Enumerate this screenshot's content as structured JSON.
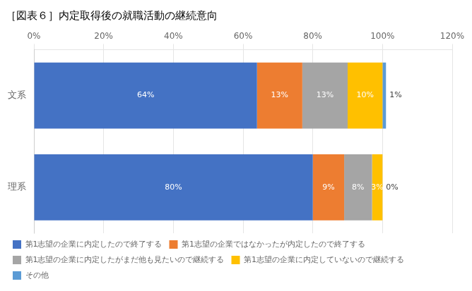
{
  "chart_data": {
    "type": "bar",
    "orientation": "horizontal",
    "stacked": true,
    "title": "［図表６］内定取得後の就職活動の継続意向",
    "categories": [
      "文系",
      "理系"
    ],
    "series": [
      {
        "name": "第1志望の企業に内定したので終了する",
        "color": "#4472C4",
        "values": [
          64,
          80
        ],
        "value_labels": [
          "64%",
          "80%"
        ]
      },
      {
        "name": "第1志望の企業ではなかったが内定したので終了する",
        "color": "#ED7D31",
        "values": [
          13,
          9
        ],
        "value_labels": [
          "13%",
          "9%"
        ]
      },
      {
        "name": "第1志望の企業に内定したがまだ他も見たいので継続する",
        "color": "#A5A5A5",
        "values": [
          13,
          8
        ],
        "value_labels": [
          "13%",
          "8%"
        ]
      },
      {
        "name": "第1志望の企業に内定していないので継続する",
        "color": "#FFC000",
        "values": [
          10,
          3
        ],
        "value_labels": [
          "10%",
          "3%"
        ]
      },
      {
        "name": "その他",
        "color": "#5B9BD5",
        "values": [
          1,
          0
        ],
        "value_labels": [
          "1%",
          "0%"
        ]
      }
    ],
    "xlim": [
      0,
      120
    ],
    "xticks": [
      {
        "value": 0,
        "label": "0%"
      },
      {
        "value": 20,
        "label": "20%"
      },
      {
        "value": 40,
        "label": "40%"
      },
      {
        "value": 60,
        "label": "60%"
      },
      {
        "value": 80,
        "label": "80%"
      },
      {
        "value": 100,
        "label": "100%"
      },
      {
        "value": 120,
        "label": "120%"
      }
    ],
    "grid": true,
    "legend": "bottom",
    "data_labels": true
  }
}
